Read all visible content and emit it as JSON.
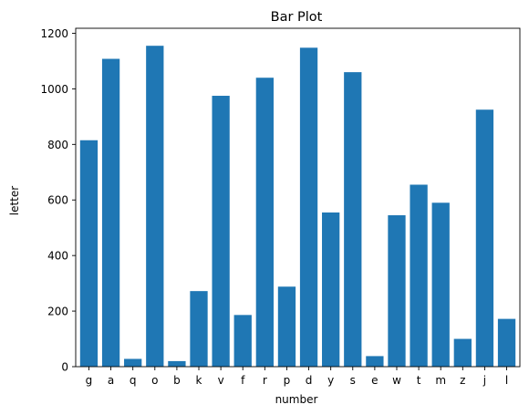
{
  "chart_data": {
    "type": "bar",
    "title": "Bar Plot",
    "xlabel": "number",
    "ylabel": "letter",
    "categories": [
      "g",
      "a",
      "q",
      "o",
      "b",
      "k",
      "v",
      "f",
      "r",
      "p",
      "d",
      "y",
      "s",
      "e",
      "w",
      "t",
      "m",
      "z",
      "j",
      "l"
    ],
    "values": [
      815,
      1108,
      28,
      1155,
      20,
      272,
      975,
      186,
      1040,
      288,
      1148,
      555,
      1060,
      38,
      545,
      655,
      590,
      100,
      925,
      172
    ],
    "ylim": [
      0,
      1218
    ],
    "yticks": [
      0,
      200,
      400,
      600,
      800,
      1000,
      1200
    ],
    "grid": false,
    "legend": "none",
    "bar_color": "#1f77b4"
  }
}
